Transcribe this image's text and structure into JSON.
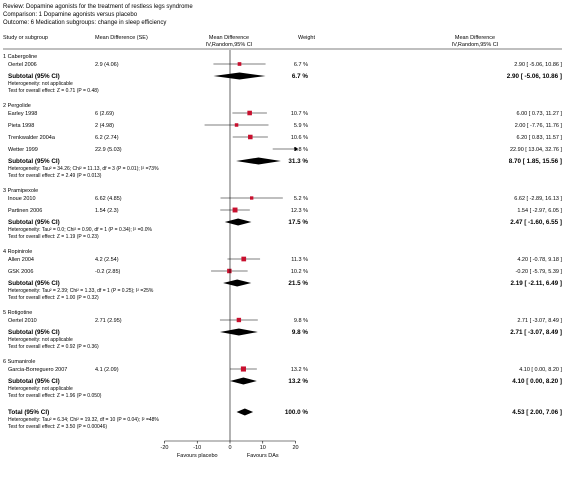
{
  "header": {
    "review": "Review:   Dopamine agonists for the treatment of restless legs syndrome",
    "comparison": "Comparison:   1 Dopamine agonists versus placebo",
    "outcome": "Outcome:   6 Medication subgroups: change in sleep efficiency"
  },
  "columns": {
    "study": "Study or subgroup",
    "md_se": "Mean Difference (SE)",
    "md_plot": "Mean Difference",
    "md_plot_sub": "IV,Random,95% CI",
    "weight": "Weight",
    "md_ci": "Mean Difference",
    "md_ci_sub": "IV,Random,95% CI"
  },
  "chart_data": {
    "type": "forest",
    "effect_measure": "Mean Difference, IV, Random, 95% CI",
    "x_ticks": [
      -20,
      -10,
      0,
      10,
      20
    ],
    "x_tick_labels": [
      "-20",
      "-10",
      "0",
      "10",
      "20"
    ],
    "xlim": [
      -20,
      20
    ],
    "favours_left": "Favours placebo",
    "favours_right": "Favours DAs",
    "groups": [
      {
        "title": "1 Cabergoline",
        "studies": [
          {
            "name": "Oertel 2006",
            "md_se": "2.9 (4.06)",
            "md": 2.9,
            "lo": -5.06,
            "hi": 10.86,
            "weight": "6.7 %",
            "ci": "2.90 [ -5.06, 10.86 ]",
            "w": 6.7
          }
        ],
        "subtotal": {
          "label": "Subtotal (95% CI)",
          "md": 2.9,
          "lo": -5.06,
          "hi": 10.86,
          "weight": "6.7 %",
          "ci": "2.90 [ -5.06, 10.86 ]"
        },
        "heterogeneity": "Heterogeneity: not applicable",
        "overall": "Test for overall effect: Z = 0.71 (P = 0.48)"
      },
      {
        "title": "2 Pergolide",
        "studies": [
          {
            "name": "Earley 1998",
            "md_se": "6 (2.69)",
            "md": 6.0,
            "lo": 0.73,
            "hi": 11.27,
            "weight": "10.7 %",
            "ci": "6.00 [ 0.73, 11.27 ]",
            "w": 10.7
          },
          {
            "name": "Pieta 1998",
            "md_se": "2 (4.98)",
            "md": 2.0,
            "lo": -7.76,
            "hi": 11.76,
            "weight": "5.9 %",
            "ci": "2.00 [ -7.76, 11.76 ]",
            "w": 5.9
          },
          {
            "name": "Trenkwalder 2004a",
            "md_se": "6.2 (2.74)",
            "md": 6.2,
            "lo": 0.83,
            "hi": 11.57,
            "weight": "10.6 %",
            "ci": "6.20 [ 0.83, 11.57 ]",
            "w": 10.6
          },
          {
            "name": "Wetter 1999",
            "md_se": "22.9 (5.03)",
            "md": 22.9,
            "lo": 13.04,
            "hi": 32.76,
            "weight": "5.8 %",
            "ci": "22.90 [ 13.04, 32.76 ]",
            "w": 5.8
          }
        ],
        "subtotal": {
          "label": "Subtotal (95% CI)",
          "md": 8.7,
          "lo": 1.85,
          "hi": 15.56,
          "weight": "31.3 %",
          "ci": "8.70 [ 1.85, 15.56 ]"
        },
        "heterogeneity": "Heterogeneity: Tau² = 34.26; Chi² = 11.13, df = 3 (P = 0.01); I² =73%",
        "overall": "Test for overall effect: Z = 2.49 (P = 0.013)"
      },
      {
        "title": "3 Pramipexole",
        "studies": [
          {
            "name": "Inoue 2010",
            "md_se": "6.62 (4.85)",
            "md": 6.62,
            "lo": -2.89,
            "hi": 16.13,
            "weight": "5.2 %",
            "ci": "6.62 [ -2.89, 16.13 ]",
            "w": 5.2
          },
          {
            "name": "Partinen 2006",
            "md_se": "1.54 (2.3)",
            "md": 1.54,
            "lo": -2.97,
            "hi": 6.05,
            "weight": "12.3 %",
            "ci": "1.54 [ -2.97, 6.05 ]",
            "w": 12.3
          }
        ],
        "subtotal": {
          "label": "Subtotal (95% CI)",
          "md": 2.47,
          "lo": -1.6,
          "hi": 6.55,
          "weight": "17.5 %",
          "ci": "2.47 [ -1.60, 6.55 ]"
        },
        "heterogeneity": "Heterogeneity: Tau² = 0.0; Chi² = 0.90, df = 1 (P = 0.34); I² =0.0%",
        "overall": "Test for overall effect: Z = 1.19 (P = 0.23)"
      },
      {
        "title": "4 Ropinirole",
        "studies": [
          {
            "name": "Allen 2004",
            "md_se": "4.2 (2.54)",
            "md": 4.2,
            "lo": -0.78,
            "hi": 9.18,
            "weight": "11.3 %",
            "ci": "4.20 [ -0.78, 9.18 ]",
            "w": 11.3
          },
          {
            "name": "GSK 2006",
            "md_se": "-0.2 (2.85)",
            "md": -0.2,
            "lo": -5.79,
            "hi": 5.39,
            "weight": "10.2 %",
            "ci": "-0.20 [ -5.79, 5.39 ]",
            "w": 10.2
          }
        ],
        "subtotal": {
          "label": "Subtotal (95% CI)",
          "md": 2.19,
          "lo": -2.11,
          "hi": 6.49,
          "weight": "21.5 %",
          "ci": "2.19 [ -2.11, 6.49 ]"
        },
        "heterogeneity": "Heterogeneity: Tau² = 2.39; Chi² = 1.33, df = 1 (P = 0.25); I² =25%",
        "overall": "Test for overall effect: Z = 1.00 (P = 0.32)"
      },
      {
        "title": "5 Rotigotine",
        "studies": [
          {
            "name": "Oertel 2010",
            "md_se": "2.71 (2.95)",
            "md": 2.71,
            "lo": -3.07,
            "hi": 8.49,
            "weight": "9.8 %",
            "ci": "2.71 [ -3.07, 8.49 ]",
            "w": 9.8
          }
        ],
        "subtotal": {
          "label": "Subtotal (95% CI)",
          "md": 2.71,
          "lo": -3.07,
          "hi": 8.49,
          "weight": "9.8 %",
          "ci": "2.71 [ -3.07, 8.49 ]"
        },
        "heterogeneity": "Heterogeneity: not applicable",
        "overall": "Test for overall effect: Z = 0.92 (P = 0.36)"
      },
      {
        "title": "6 Sumanirole",
        "studies": [
          {
            "name": "Garcia-Borreguero 2007",
            "md_se": "4.1 (2.09)",
            "md": 4.1,
            "lo": 0.0,
            "hi": 8.2,
            "weight": "13.2 %",
            "ci": "4.10 [ 0.00, 8.20 ]",
            "w": 13.2
          }
        ],
        "subtotal": {
          "label": "Subtotal (95% CI)",
          "md": 4.1,
          "lo": 0.0,
          "hi": 8.2,
          "weight": "13.2 %",
          "ci": "4.10 [ 0.00, 8.20 ]"
        },
        "heterogeneity": "Heterogeneity: not applicable",
        "overall": "Test for overall effect: Z = 1.96 (P = 0.050)"
      }
    ],
    "total": {
      "label": "Total (95% CI)",
      "md": 4.53,
      "lo": 2.0,
      "hi": 7.06,
      "weight": "100.0 %",
      "ci": "4.53 [ 2.00, 7.06 ]",
      "heterogeneity": "Heterogeneity: Tau² = 6.34; Chi² = 19.32, df = 10 (P = 0.04); I² =48%",
      "overall": "Test for overall effect: Z = 3.50 (P = 0.00046)"
    },
    "colors": {
      "study_marker": "#c8102e",
      "line": "#000000"
    }
  }
}
